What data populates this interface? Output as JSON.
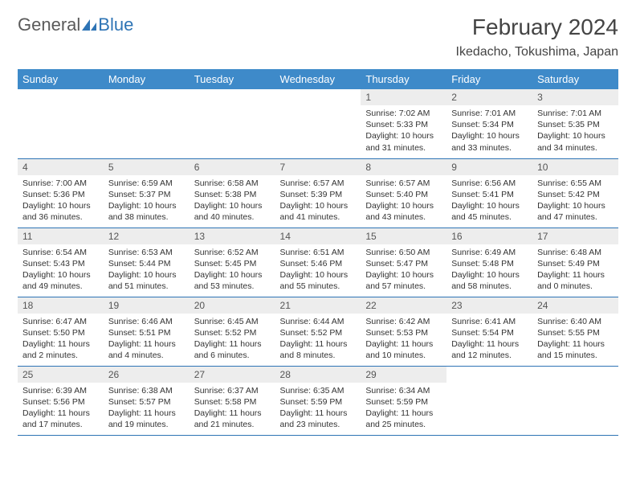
{
  "logo": {
    "text1": "General",
    "text2": "Blue"
  },
  "header": {
    "month_title": "February 2024",
    "location": "Ikedacho, Tokushima, Japan"
  },
  "colors": {
    "header_bg": "#3e8ac9",
    "header_text": "#ffffff",
    "daynum_bg": "#ededed",
    "border": "#2e74b5",
    "logo_gray": "#5a5a5a",
    "logo_blue": "#2e74b5",
    "body_text": "#333333"
  },
  "typography": {
    "month_title_fontsize": 28,
    "location_fontsize": 16,
    "dayheader_fontsize": 13,
    "daynum_fontsize": 12,
    "info_fontsize": 10.5
  },
  "day_headers": [
    "Sunday",
    "Monday",
    "Tuesday",
    "Wednesday",
    "Thursday",
    "Friday",
    "Saturday"
  ],
  "weeks": [
    [
      {
        "empty": true
      },
      {
        "empty": true
      },
      {
        "empty": true
      },
      {
        "empty": true
      },
      {
        "day": "1",
        "sunrise": "Sunrise: 7:02 AM",
        "sunset": "Sunset: 5:33 PM",
        "daylight1": "Daylight: 10 hours",
        "daylight2": "and 31 minutes."
      },
      {
        "day": "2",
        "sunrise": "Sunrise: 7:01 AM",
        "sunset": "Sunset: 5:34 PM",
        "daylight1": "Daylight: 10 hours",
        "daylight2": "and 33 minutes."
      },
      {
        "day": "3",
        "sunrise": "Sunrise: 7:01 AM",
        "sunset": "Sunset: 5:35 PM",
        "daylight1": "Daylight: 10 hours",
        "daylight2": "and 34 minutes."
      }
    ],
    [
      {
        "day": "4",
        "sunrise": "Sunrise: 7:00 AM",
        "sunset": "Sunset: 5:36 PM",
        "daylight1": "Daylight: 10 hours",
        "daylight2": "and 36 minutes."
      },
      {
        "day": "5",
        "sunrise": "Sunrise: 6:59 AM",
        "sunset": "Sunset: 5:37 PM",
        "daylight1": "Daylight: 10 hours",
        "daylight2": "and 38 minutes."
      },
      {
        "day": "6",
        "sunrise": "Sunrise: 6:58 AM",
        "sunset": "Sunset: 5:38 PM",
        "daylight1": "Daylight: 10 hours",
        "daylight2": "and 40 minutes."
      },
      {
        "day": "7",
        "sunrise": "Sunrise: 6:57 AM",
        "sunset": "Sunset: 5:39 PM",
        "daylight1": "Daylight: 10 hours",
        "daylight2": "and 41 minutes."
      },
      {
        "day": "8",
        "sunrise": "Sunrise: 6:57 AM",
        "sunset": "Sunset: 5:40 PM",
        "daylight1": "Daylight: 10 hours",
        "daylight2": "and 43 minutes."
      },
      {
        "day": "9",
        "sunrise": "Sunrise: 6:56 AM",
        "sunset": "Sunset: 5:41 PM",
        "daylight1": "Daylight: 10 hours",
        "daylight2": "and 45 minutes."
      },
      {
        "day": "10",
        "sunrise": "Sunrise: 6:55 AM",
        "sunset": "Sunset: 5:42 PM",
        "daylight1": "Daylight: 10 hours",
        "daylight2": "and 47 minutes."
      }
    ],
    [
      {
        "day": "11",
        "sunrise": "Sunrise: 6:54 AM",
        "sunset": "Sunset: 5:43 PM",
        "daylight1": "Daylight: 10 hours",
        "daylight2": "and 49 minutes."
      },
      {
        "day": "12",
        "sunrise": "Sunrise: 6:53 AM",
        "sunset": "Sunset: 5:44 PM",
        "daylight1": "Daylight: 10 hours",
        "daylight2": "and 51 minutes."
      },
      {
        "day": "13",
        "sunrise": "Sunrise: 6:52 AM",
        "sunset": "Sunset: 5:45 PM",
        "daylight1": "Daylight: 10 hours",
        "daylight2": "and 53 minutes."
      },
      {
        "day": "14",
        "sunrise": "Sunrise: 6:51 AM",
        "sunset": "Sunset: 5:46 PM",
        "daylight1": "Daylight: 10 hours",
        "daylight2": "and 55 minutes."
      },
      {
        "day": "15",
        "sunrise": "Sunrise: 6:50 AM",
        "sunset": "Sunset: 5:47 PM",
        "daylight1": "Daylight: 10 hours",
        "daylight2": "and 57 minutes."
      },
      {
        "day": "16",
        "sunrise": "Sunrise: 6:49 AM",
        "sunset": "Sunset: 5:48 PM",
        "daylight1": "Daylight: 10 hours",
        "daylight2": "and 58 minutes."
      },
      {
        "day": "17",
        "sunrise": "Sunrise: 6:48 AM",
        "sunset": "Sunset: 5:49 PM",
        "daylight1": "Daylight: 11 hours",
        "daylight2": "and 0 minutes."
      }
    ],
    [
      {
        "day": "18",
        "sunrise": "Sunrise: 6:47 AM",
        "sunset": "Sunset: 5:50 PM",
        "daylight1": "Daylight: 11 hours",
        "daylight2": "and 2 minutes."
      },
      {
        "day": "19",
        "sunrise": "Sunrise: 6:46 AM",
        "sunset": "Sunset: 5:51 PM",
        "daylight1": "Daylight: 11 hours",
        "daylight2": "and 4 minutes."
      },
      {
        "day": "20",
        "sunrise": "Sunrise: 6:45 AM",
        "sunset": "Sunset: 5:52 PM",
        "daylight1": "Daylight: 11 hours",
        "daylight2": "and 6 minutes."
      },
      {
        "day": "21",
        "sunrise": "Sunrise: 6:44 AM",
        "sunset": "Sunset: 5:52 PM",
        "daylight1": "Daylight: 11 hours",
        "daylight2": "and 8 minutes."
      },
      {
        "day": "22",
        "sunrise": "Sunrise: 6:42 AM",
        "sunset": "Sunset: 5:53 PM",
        "daylight1": "Daylight: 11 hours",
        "daylight2": "and 10 minutes."
      },
      {
        "day": "23",
        "sunrise": "Sunrise: 6:41 AM",
        "sunset": "Sunset: 5:54 PM",
        "daylight1": "Daylight: 11 hours",
        "daylight2": "and 12 minutes."
      },
      {
        "day": "24",
        "sunrise": "Sunrise: 6:40 AM",
        "sunset": "Sunset: 5:55 PM",
        "daylight1": "Daylight: 11 hours",
        "daylight2": "and 15 minutes."
      }
    ],
    [
      {
        "day": "25",
        "sunrise": "Sunrise: 6:39 AM",
        "sunset": "Sunset: 5:56 PM",
        "daylight1": "Daylight: 11 hours",
        "daylight2": "and 17 minutes."
      },
      {
        "day": "26",
        "sunrise": "Sunrise: 6:38 AM",
        "sunset": "Sunset: 5:57 PM",
        "daylight1": "Daylight: 11 hours",
        "daylight2": "and 19 minutes."
      },
      {
        "day": "27",
        "sunrise": "Sunrise: 6:37 AM",
        "sunset": "Sunset: 5:58 PM",
        "daylight1": "Daylight: 11 hours",
        "daylight2": "and 21 minutes."
      },
      {
        "day": "28",
        "sunrise": "Sunrise: 6:35 AM",
        "sunset": "Sunset: 5:59 PM",
        "daylight1": "Daylight: 11 hours",
        "daylight2": "and 23 minutes."
      },
      {
        "day": "29",
        "sunrise": "Sunrise: 6:34 AM",
        "sunset": "Sunset: 5:59 PM",
        "daylight1": "Daylight: 11 hours",
        "daylight2": "and 25 minutes."
      },
      {
        "empty": true
      },
      {
        "empty": true
      }
    ]
  ]
}
